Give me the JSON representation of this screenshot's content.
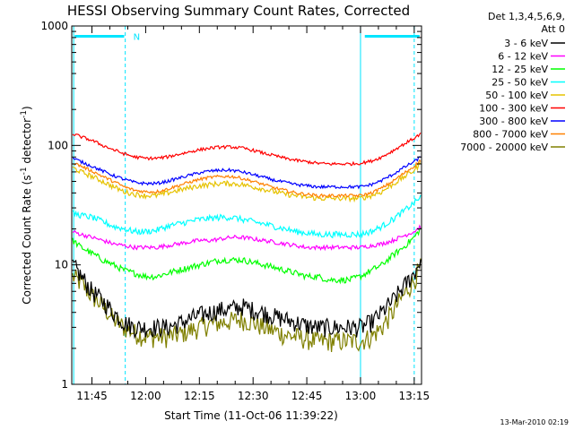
{
  "chart_data": {
    "type": "line",
    "title": "HESSI Observing Summary Count Rates, Corrected",
    "xlabel": "Start Time (11-Oct-06 11:39:22)",
    "ylabel_main": "Corrected Count Rate (s",
    "ylabel_sup1": "-1",
    "ylabel_mid": " detector",
    "ylabel_sup2": "-1",
    "ylabel_end": ")",
    "yscale": "log",
    "ylim": [
      1,
      1000
    ],
    "xlim": [
      11.656,
      13.284
    ],
    "x_ticks": [
      {
        "value": 11.75,
        "label": "11:45"
      },
      {
        "value": 12.0,
        "label": "12:00"
      },
      {
        "value": 12.25,
        "label": "12:15"
      },
      {
        "value": 12.5,
        "label": "12:30"
      },
      {
        "value": 12.75,
        "label": "12:45"
      },
      {
        "value": 13.0,
        "label": "13:00"
      },
      {
        "value": 13.25,
        "label": "13:15"
      }
    ],
    "y_ticks": [
      {
        "value": 1,
        "label": "1"
      },
      {
        "value": 10,
        "label": "10"
      },
      {
        "value": 100,
        "label": "100"
      },
      {
        "value": 1000,
        "label": "1000"
      }
    ],
    "legend_header": [
      "Det 1,3,4,5,6,9,",
      "Att 0"
    ],
    "legend_placement": "right",
    "x": [
      11.66,
      11.7,
      11.75,
      11.8,
      11.85,
      11.9,
      11.95,
      12.0,
      12.05,
      12.1,
      12.15,
      12.2,
      12.25,
      12.3,
      12.35,
      12.4,
      12.45,
      12.5,
      12.55,
      12.6,
      12.65,
      12.7,
      12.75,
      12.8,
      12.85,
      12.9,
      12.95,
      13.0,
      13.05,
      13.1,
      13.15,
      13.2,
      13.25,
      13.28
    ],
    "series": [
      {
        "name": "3 - 6 keV",
        "color": "#000000",
        "noise": 0.18,
        "values": [
          10,
          8,
          6,
          5,
          4,
          3.3,
          3,
          3,
          3,
          3,
          3.2,
          3.5,
          3.8,
          4,
          4.2,
          4.3,
          4.5,
          4.2,
          4,
          3.7,
          3.5,
          3.3,
          3.1,
          3,
          3,
          3,
          3,
          3,
          3.3,
          4,
          5,
          6.5,
          8.5,
          11
        ]
      },
      {
        "name": "6 - 12 keV",
        "color": "#ff00ff",
        "noise": 0.04,
        "values": [
          19,
          18,
          17,
          16,
          15,
          14.5,
          14,
          14,
          14,
          14.5,
          15,
          15.5,
          16,
          16,
          16.5,
          17,
          17,
          16.5,
          16,
          15.5,
          15,
          14.5,
          14,
          14,
          14,
          14,
          14,
          14,
          14.5,
          15,
          16,
          17.5,
          19,
          21
        ]
      },
      {
        "name": "12 - 25 keV",
        "color": "#00ff00",
        "noise": 0.06,
        "values": [
          16,
          14,
          12.5,
          11,
          10,
          9,
          8.5,
          8,
          8,
          8.5,
          9,
          9.5,
          10,
          10.5,
          11,
          11,
          11,
          10.5,
          10,
          9.5,
          9,
          8.5,
          8,
          8,
          7.5,
          7.5,
          7.5,
          8,
          9,
          10,
          12,
          14,
          17,
          20
        ]
      },
      {
        "name": "25 - 50 keV",
        "color": "#00ffff",
        "noise": 0.06,
        "values": [
          27,
          26,
          25,
          23,
          21,
          20,
          19,
          19,
          19.5,
          21,
          22,
          23,
          24,
          24.5,
          25,
          25,
          24,
          23,
          22,
          21,
          20,
          19,
          18.5,
          18,
          18,
          18,
          18,
          18,
          19,
          21,
          24,
          28,
          33,
          37
        ]
      },
      {
        "name": "50 - 100 keV",
        "color": "#e6c200",
        "noise": 0.05,
        "values": [
          65,
          60,
          55,
          50,
          45,
          41,
          39,
          38,
          38,
          40,
          42,
          44,
          46,
          47,
          48,
          48,
          47,
          45,
          43,
          41,
          39,
          38,
          37,
          36,
          36,
          36,
          36,
          36,
          38,
          41,
          47,
          54,
          62,
          70
        ]
      },
      {
        "name": "100 - 300 keV",
        "color": "#ff0000",
        "noise": 0.03,
        "values": [
          125,
          118,
          110,
          100,
          92,
          85,
          80,
          78,
          78,
          80,
          84,
          88,
          92,
          95,
          97,
          97,
          95,
          91,
          86,
          82,
          78,
          75,
          73,
          71,
          70,
          70,
          70,
          71,
          74,
          80,
          90,
          102,
          115,
          125
        ]
      },
      {
        "name": "300 - 800 keV",
        "color": "#0000ff",
        "noise": 0.03,
        "values": [
          78,
          73,
          67,
          61,
          56,
          52,
          49,
          48,
          48,
          50,
          53,
          56,
          59,
          61,
          62,
          62,
          60,
          57,
          54,
          51,
          49,
          47,
          46,
          45,
          45,
          45,
          45,
          45,
          47,
          51,
          57,
          65,
          73,
          80
        ]
      },
      {
        "name": "800 - 7000 keV",
        "color": "#ff8000",
        "noise": 0.03,
        "values": [
          72,
          67,
          61,
          55,
          50,
          45,
          42,
          41,
          41,
          43,
          46,
          49,
          52,
          54,
          55,
          55,
          53,
          50,
          47,
          44,
          42,
          40,
          39,
          38,
          38,
          38,
          38,
          38,
          40,
          44,
          50,
          58,
          67,
          75
        ]
      },
      {
        "name": "7000 - 20000 keV",
        "color": "#808000",
        "noise": 0.2,
        "values": [
          8,
          7,
          5.5,
          4.5,
          3.5,
          3,
          2.7,
          2.5,
          2.5,
          2.5,
          2.6,
          2.8,
          3,
          3.2,
          3.3,
          3.4,
          3.5,
          3.3,
          3,
          2.8,
          2.6,
          2.5,
          2.4,
          2.3,
          2.3,
          2.3,
          2.3,
          2.3,
          2.5,
          3,
          4,
          5.5,
          7.5,
          9.5
        ]
      }
    ],
    "annotations": {
      "attenuator_segments": [
        {
          "x0": 11.67,
          "x1": 11.9,
          "value": 820
        },
        {
          "x0": 13.02,
          "x1": 13.275,
          "value": 820
        }
      ],
      "night_marker": {
        "label": "N",
        "x": 11.93,
        "value": 820
      },
      "vertical_lines_solid": [
        11.665,
        13.0
      ],
      "vertical_lines_dashed": [
        11.905,
        13.25
      ],
      "color": "#00e5ff"
    },
    "grid": false
  },
  "footer": {
    "timestamp": "13-Mar-2010 02:19"
  }
}
